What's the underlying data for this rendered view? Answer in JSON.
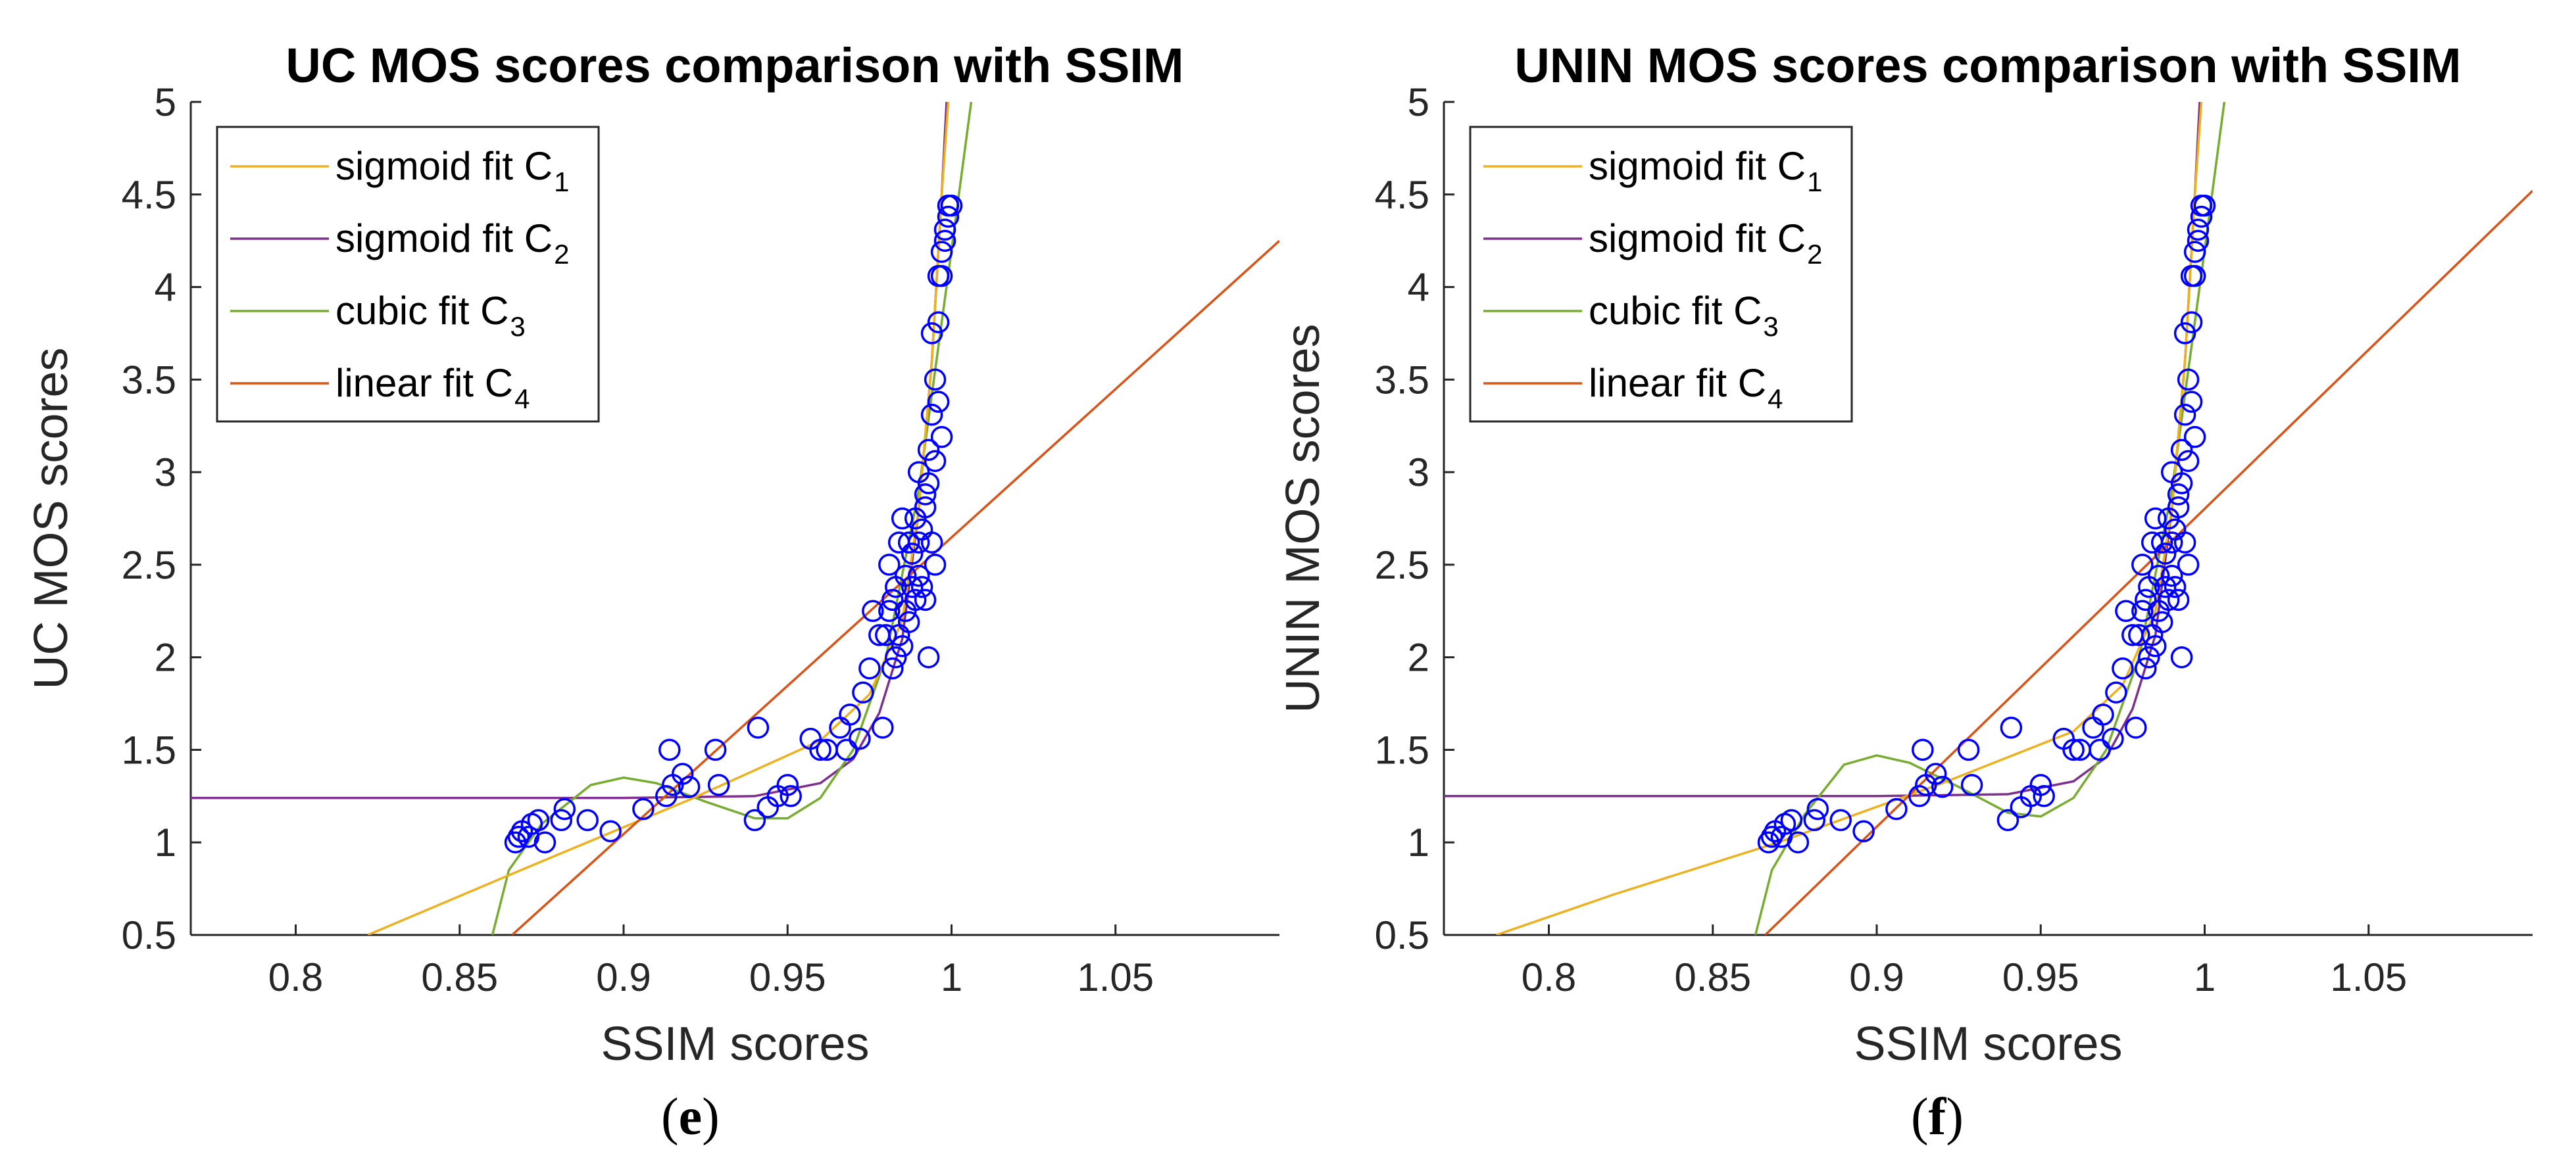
{
  "colors": {
    "sigmoid_c1": "#EDB120",
    "sigmoid_c2": "#7E2F8E",
    "cubic_c3": "#77AC30",
    "linear_c4": "#D95319",
    "markers": "#0000FF",
    "axes": "#262626"
  },
  "chart_data": [
    {
      "type": "scatter",
      "panel_label": "(e)",
      "panel_letter": "e",
      "title": "UC MOS scores comparison with SSIM",
      "xlabel": "SSIM scores",
      "ylabel": "UC MOS scores",
      "xlim": [
        0.768,
        1.1
      ],
      "ylim": [
        0.5,
        5
      ],
      "xticks": [
        0.8,
        0.85,
        0.9,
        0.95,
        1,
        1.05
      ],
      "xtick_labels": [
        "0.8",
        "0.85",
        "0.9",
        "0.95",
        "1",
        "1.05"
      ],
      "yticks": [
        0.5,
        1,
        1.5,
        2,
        2.5,
        3,
        3.5,
        4,
        4.5,
        5
      ],
      "ytick_labels": [
        "0.5",
        "1",
        "1.5",
        "2",
        "2.5",
        "3",
        "3.5",
        "4",
        "4.5",
        "5"
      ],
      "legend": {
        "position": "top-left",
        "entries": [
          {
            "key": "sigmoid_c1",
            "label": "sigmoid fit C",
            "sub": "1"
          },
          {
            "key": "sigmoid_c2",
            "label": "sigmoid fit C",
            "sub": "2"
          },
          {
            "key": "cubic_c3",
            "label": "cubic fit C",
            "sub": "3"
          },
          {
            "key": "linear_c4",
            "label": "linear fit C",
            "sub": "4"
          }
        ]
      },
      "fits": {
        "sigmoid_c1": {
          "segments": [
            [
              0.822,
              0.5
            ],
            [
              0.87,
              0.86
            ],
            [
              0.92,
              1.23
            ],
            [
              0.96,
              1.55
            ],
            [
              0.975,
              1.8
            ],
            [
              0.985,
              2.2
            ],
            [
              0.99,
              2.8
            ],
            [
              0.994,
              3.6
            ],
            [
              0.997,
              4.5
            ],
            [
              0.999,
              5.0
            ]
          ]
        },
        "sigmoid_c2": {
          "segments": [
            [
              0.768,
              1.24
            ],
            [
              0.9,
              1.24
            ],
            [
              0.94,
              1.25
            ],
            [
              0.96,
              1.32
            ],
            [
              0.97,
              1.45
            ],
            [
              0.978,
              1.7
            ],
            [
              0.985,
              2.1
            ],
            [
              0.99,
              2.8
            ],
            [
              0.994,
              3.6
            ],
            [
              0.997,
              4.5
            ],
            [
              0.9985,
              5.0
            ]
          ]
        },
        "cubic_c3": {
          "segments": [
            [
              0.86,
              0.5
            ],
            [
              0.865,
              0.85
            ],
            [
              0.875,
              1.1
            ],
            [
              0.89,
              1.31
            ],
            [
              0.9,
              1.35
            ],
            [
              0.91,
              1.32
            ],
            [
              0.925,
              1.22
            ],
            [
              0.94,
              1.13
            ],
            [
              0.95,
              1.13
            ],
            [
              0.96,
              1.24
            ],
            [
              0.97,
              1.5
            ],
            [
              0.98,
              2.0
            ],
            [
              0.99,
              2.9
            ],
            [
              1.0,
              4.2
            ],
            [
              1.006,
              5.0
            ]
          ]
        },
        "linear_c4": {
          "segments": [
            [
              0.866,
              0.5
            ],
            [
              1.1,
              4.25
            ]
          ]
        }
      },
      "points": [
        [
          0.867,
          1.0
        ],
        [
          0.868,
          1.03
        ],
        [
          0.869,
          1.06
        ],
        [
          0.871,
          1.03
        ],
        [
          0.872,
          1.1
        ],
        [
          0.874,
          1.12
        ],
        [
          0.876,
          1.0
        ],
        [
          0.881,
          1.12
        ],
        [
          0.882,
          1.18
        ],
        [
          0.889,
          1.12
        ],
        [
          0.896,
          1.06
        ],
        [
          0.906,
          1.18
        ],
        [
          0.913,
          1.25
        ],
        [
          0.915,
          1.31
        ],
        [
          0.914,
          1.5
        ],
        [
          0.918,
          1.37
        ],
        [
          0.92,
          1.3
        ],
        [
          0.928,
          1.5
        ],
        [
          0.929,
          1.31
        ],
        [
          0.94,
          1.12
        ],
        [
          0.941,
          1.62
        ],
        [
          0.944,
          1.19
        ],
        [
          0.947,
          1.25
        ],
        [
          0.95,
          1.31
        ],
        [
          0.951,
          1.25
        ],
        [
          0.957,
          1.56
        ],
        [
          0.96,
          1.5
        ],
        [
          0.962,
          1.5
        ],
        [
          0.966,
          1.62
        ],
        [
          0.968,
          1.5
        ],
        [
          0.969,
          1.69
        ],
        [
          0.972,
          1.56
        ],
        [
          0.973,
          1.81
        ],
        [
          0.975,
          1.94
        ],
        [
          0.976,
          2.25
        ],
        [
          0.978,
          2.12
        ],
        [
          0.979,
          1.62
        ],
        [
          0.98,
          2.12
        ],
        [
          0.981,
          2.25
        ],
        [
          0.981,
          2.5
        ],
        [
          0.982,
          2.31
        ],
        [
          0.982,
          1.94
        ],
        [
          0.983,
          2.0
        ],
        [
          0.983,
          2.38
        ],
        [
          0.984,
          2.12
        ],
        [
          0.984,
          2.62
        ],
        [
          0.985,
          2.06
        ],
        [
          0.985,
          2.75
        ],
        [
          0.986,
          2.25
        ],
        [
          0.986,
          2.44
        ],
        [
          0.987,
          2.19
        ],
        [
          0.987,
          2.62
        ],
        [
          0.988,
          2.38
        ],
        [
          0.988,
          2.56
        ],
        [
          0.989,
          2.75
        ],
        [
          0.989,
          2.31
        ],
        [
          0.99,
          3.0
        ],
        [
          0.99,
          2.62
        ],
        [
          0.991,
          2.69
        ],
        [
          0.991,
          2.38
        ],
        [
          0.992,
          2.88
        ],
        [
          0.992,
          2.81
        ],
        [
          0.993,
          2.94
        ],
        [
          0.993,
          3.12
        ],
        [
          0.994,
          3.31
        ],
        [
          0.994,
          2.62
        ],
        [
          0.994,
          3.75
        ],
        [
          0.995,
          3.06
        ],
        [
          0.995,
          3.5
        ],
        [
          0.996,
          3.38
        ],
        [
          0.996,
          4.06
        ],
        [
          0.997,
          4.19
        ],
        [
          0.997,
          3.19
        ],
        [
          0.997,
          4.06
        ],
        [
          0.998,
          4.31
        ],
        [
          0.998,
          4.25
        ],
        [
          0.999,
          4.38
        ],
        [
          0.999,
          4.44
        ],
        [
          1.0,
          4.44
        ],
        [
          0.996,
          3.81
        ],
        [
          0.995,
          2.5
        ],
        [
          0.993,
          2.0
        ],
        [
          0.99,
          2.44
        ],
        [
          0.992,
          2.31
        ]
      ]
    },
    {
      "type": "scatter",
      "panel_label": "(f)",
      "panel_letter": "f",
      "title": "UNIN MOS scores comparison with SSIM",
      "xlabel": "SSIM scores",
      "ylabel": "UNIN MOS scores",
      "xlim": [
        0.768,
        1.1
      ],
      "ylim": [
        0.5,
        5
      ],
      "xticks": [
        0.8,
        0.85,
        0.9,
        0.95,
        1,
        1.05
      ],
      "xtick_labels": [
        "0.8",
        "0.85",
        "0.9",
        "0.95",
        "1",
        "1.05"
      ],
      "yticks": [
        0.5,
        1,
        1.5,
        2,
        2.5,
        3,
        3.5,
        4,
        4.5,
        5
      ],
      "ytick_labels": [
        "0.5",
        "1",
        "1.5",
        "2",
        "2.5",
        "3",
        "3.5",
        "4",
        "4.5",
        "5"
      ],
      "legend": {
        "position": "top-left",
        "entries": [
          {
            "key": "sigmoid_c1",
            "label": "sigmoid fit C",
            "sub": "1"
          },
          {
            "key": "sigmoid_c2",
            "label": "sigmoid fit C",
            "sub": "2"
          },
          {
            "key": "cubic_c3",
            "label": "cubic fit C",
            "sub": "3"
          },
          {
            "key": "linear_c4",
            "label": "linear fit C",
            "sub": "4"
          }
        ]
      },
      "fits": {
        "sigmoid_c1": {
          "segments": [
            [
              0.784,
              0.5
            ],
            [
              0.82,
              0.72
            ],
            [
              0.87,
              1.0
            ],
            [
              0.92,
              1.32
            ],
            [
              0.96,
              1.6
            ],
            [
              0.975,
              1.85
            ],
            [
              0.985,
              2.25
            ],
            [
              0.99,
              2.8
            ],
            [
              0.994,
              3.6
            ],
            [
              0.997,
              4.5
            ],
            [
              0.999,
              5.0
            ]
          ]
        },
        "sigmoid_c2": {
          "segments": [
            [
              0.768,
              1.25
            ],
            [
              0.9,
              1.25
            ],
            [
              0.94,
              1.26
            ],
            [
              0.96,
              1.33
            ],
            [
              0.97,
              1.46
            ],
            [
              0.978,
              1.72
            ],
            [
              0.985,
              2.12
            ],
            [
              0.99,
              2.8
            ],
            [
              0.994,
              3.6
            ],
            [
              0.997,
              4.5
            ],
            [
              0.9985,
              5.0
            ]
          ]
        },
        "cubic_c3": {
          "segments": [
            [
              0.863,
              0.5
            ],
            [
              0.868,
              0.85
            ],
            [
              0.878,
              1.15
            ],
            [
              0.89,
              1.42
            ],
            [
              0.9,
              1.47
            ],
            [
              0.91,
              1.43
            ],
            [
              0.925,
              1.3
            ],
            [
              0.94,
              1.16
            ],
            [
              0.95,
              1.14
            ],
            [
              0.96,
              1.24
            ],
            [
              0.97,
              1.5
            ],
            [
              0.98,
              2.0
            ],
            [
              0.99,
              2.9
            ],
            [
              1.0,
              4.2
            ],
            [
              1.006,
              5.0
            ]
          ]
        },
        "linear_c4": {
          "segments": [
            [
              0.866,
              0.5
            ],
            [
              1.1,
              4.52
            ]
          ]
        }
      },
      "points": [
        [
          0.867,
          1.0
        ],
        [
          0.868,
          1.03
        ],
        [
          0.869,
          1.06
        ],
        [
          0.871,
          1.03
        ],
        [
          0.872,
          1.1
        ],
        [
          0.874,
          1.12
        ],
        [
          0.876,
          1.0
        ],
        [
          0.881,
          1.12
        ],
        [
          0.882,
          1.18
        ],
        [
          0.889,
          1.12
        ],
        [
          0.896,
          1.06
        ],
        [
          0.906,
          1.18
        ],
        [
          0.913,
          1.25
        ],
        [
          0.915,
          1.31
        ],
        [
          0.914,
          1.5
        ],
        [
          0.918,
          1.37
        ],
        [
          0.92,
          1.3
        ],
        [
          0.928,
          1.5
        ],
        [
          0.929,
          1.31
        ],
        [
          0.94,
          1.12
        ],
        [
          0.941,
          1.62
        ],
        [
          0.944,
          1.19
        ],
        [
          0.947,
          1.25
        ],
        [
          0.95,
          1.31
        ],
        [
          0.951,
          1.25
        ],
        [
          0.957,
          1.56
        ],
        [
          0.96,
          1.5
        ],
        [
          0.962,
          1.5
        ],
        [
          0.966,
          1.62
        ],
        [
          0.968,
          1.5
        ],
        [
          0.969,
          1.69
        ],
        [
          0.972,
          1.56
        ],
        [
          0.973,
          1.81
        ],
        [
          0.975,
          1.94
        ],
        [
          0.976,
          2.25
        ],
        [
          0.978,
          2.12
        ],
        [
          0.979,
          1.62
        ],
        [
          0.98,
          2.12
        ],
        [
          0.981,
          2.25
        ],
        [
          0.981,
          2.5
        ],
        [
          0.982,
          2.31
        ],
        [
          0.982,
          1.94
        ],
        [
          0.983,
          2.0
        ],
        [
          0.983,
          2.38
        ],
        [
          0.984,
          2.12
        ],
        [
          0.984,
          2.62
        ],
        [
          0.985,
          2.06
        ],
        [
          0.985,
          2.75
        ],
        [
          0.986,
          2.25
        ],
        [
          0.986,
          2.44
        ],
        [
          0.987,
          2.19
        ],
        [
          0.987,
          2.62
        ],
        [
          0.988,
          2.38
        ],
        [
          0.988,
          2.56
        ],
        [
          0.989,
          2.75
        ],
        [
          0.989,
          2.31
        ],
        [
          0.99,
          3.0
        ],
        [
          0.99,
          2.62
        ],
        [
          0.991,
          2.69
        ],
        [
          0.991,
          2.38
        ],
        [
          0.992,
          2.88
        ],
        [
          0.992,
          2.81
        ],
        [
          0.993,
          2.94
        ],
        [
          0.993,
          3.12
        ],
        [
          0.994,
          3.31
        ],
        [
          0.994,
          2.62
        ],
        [
          0.994,
          3.75
        ],
        [
          0.995,
          3.06
        ],
        [
          0.995,
          3.5
        ],
        [
          0.996,
          3.38
        ],
        [
          0.996,
          4.06
        ],
        [
          0.997,
          4.19
        ],
        [
          0.997,
          3.19
        ],
        [
          0.997,
          4.06
        ],
        [
          0.998,
          4.31
        ],
        [
          0.998,
          4.25
        ],
        [
          0.999,
          4.38
        ],
        [
          0.999,
          4.44
        ],
        [
          1.0,
          4.44
        ],
        [
          0.996,
          3.81
        ],
        [
          0.995,
          2.5
        ],
        [
          0.993,
          2.0
        ],
        [
          0.99,
          2.44
        ],
        [
          0.992,
          2.31
        ]
      ]
    }
  ]
}
